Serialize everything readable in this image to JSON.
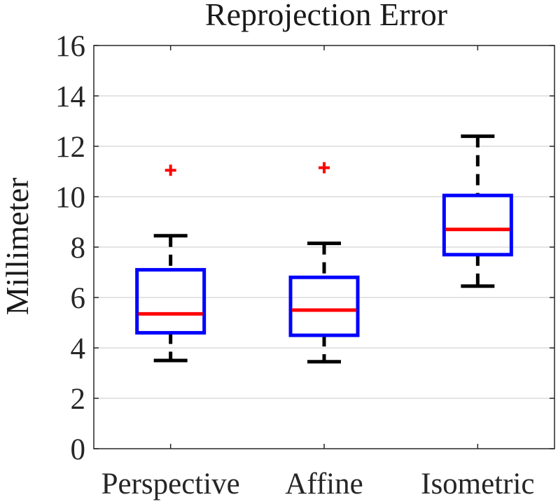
{
  "chart_data": {
    "type": "boxplot",
    "title": "Reprojection Error",
    "xlabel": "",
    "ylabel": "Millimeter",
    "ylim": [
      0,
      16
    ],
    "yticks": [
      0,
      2,
      4,
      6,
      8,
      10,
      12,
      14,
      16
    ],
    "grid": "horizontal",
    "categories": [
      "Perspective",
      "Affine",
      "Isometric"
    ],
    "boxes": [
      {
        "label": "Perspective",
        "whisker_low": 3.5,
        "q1": 4.6,
        "median": 5.35,
        "q3": 7.1,
        "whisker_high": 8.45,
        "outliers": [
          11.05
        ]
      },
      {
        "label": "Affine",
        "whisker_low": 3.45,
        "q1": 4.5,
        "median": 5.5,
        "q3": 6.8,
        "whisker_high": 8.15,
        "outliers": [
          11.15
        ]
      },
      {
        "label": "Isometric",
        "whisker_low": 6.45,
        "q1": 7.7,
        "median": 8.7,
        "q3": 10.05,
        "whisker_high": 12.4,
        "outliers": []
      }
    ],
    "colors": {
      "box": "#0000ff",
      "median": "#ff0000",
      "whisker": "#000000",
      "outlier": "#ff0000",
      "grid": "#dcdcdc",
      "axis": "#262626"
    }
  }
}
